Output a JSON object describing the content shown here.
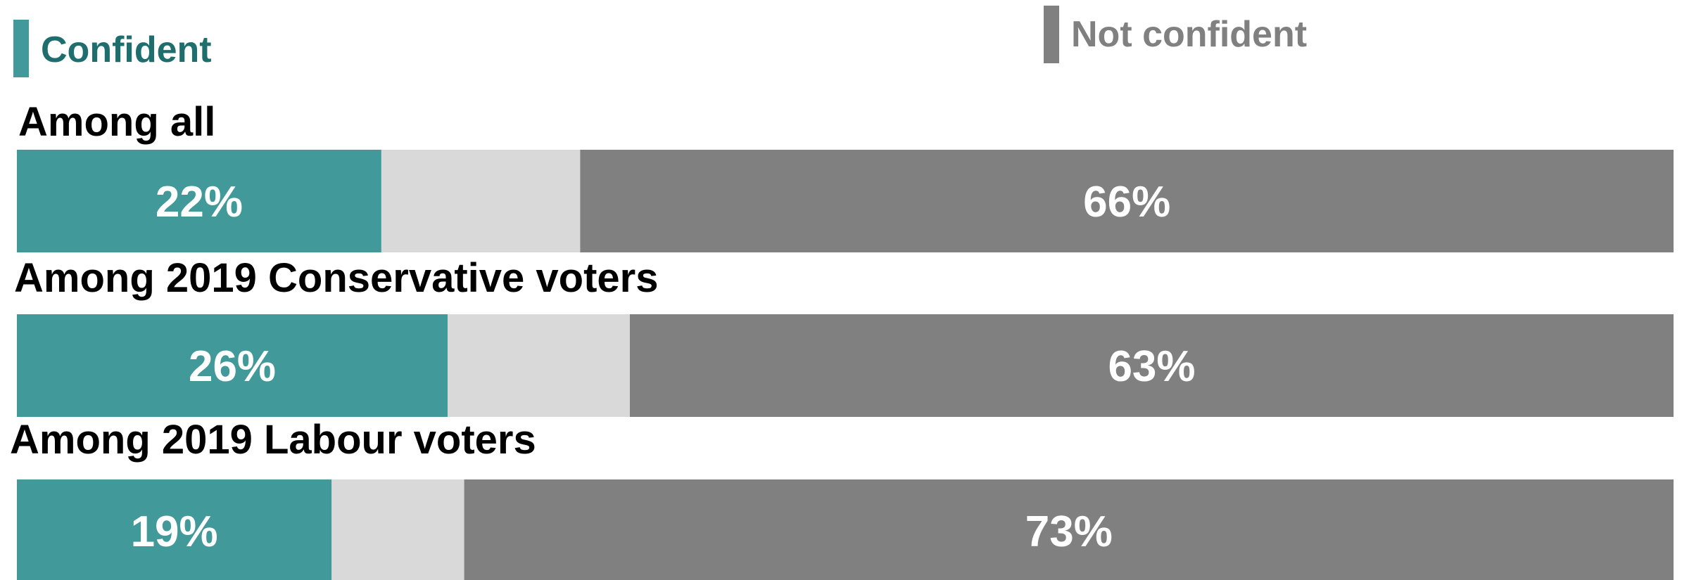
{
  "chart_data": {
    "type": "bar",
    "orientation": "horizontal",
    "stacked": true,
    "legend_placement": "top",
    "xlim": [
      0,
      100
    ],
    "categories": [
      "Among all",
      "Among 2019 Conservative voters",
      "Among 2019 Labour voters"
    ],
    "series": [
      {
        "name": "Confident",
        "color": "#429999",
        "values": [
          22,
          26,
          19
        ],
        "labels": [
          "22%",
          "26%",
          "19%"
        ]
      },
      {
        "name": "",
        "color": "#d9d9d9",
        "values": [
          12,
          11,
          8
        ],
        "labels": [
          "",
          "",
          ""
        ]
      },
      {
        "name": "Not confident",
        "color": "#808080",
        "values": [
          66,
          63,
          73
        ],
        "labels": [
          "66%",
          "63%",
          "73%"
        ]
      }
    ],
    "legend": [
      {
        "label": "Confident",
        "color": "#429999",
        "text_color": "#1f6e6e"
      },
      {
        "label": "Not confident",
        "color": "#808080",
        "text_color": "#808080"
      }
    ],
    "category_label_color": "#000000",
    "data_label_color": "#ffffff"
  }
}
